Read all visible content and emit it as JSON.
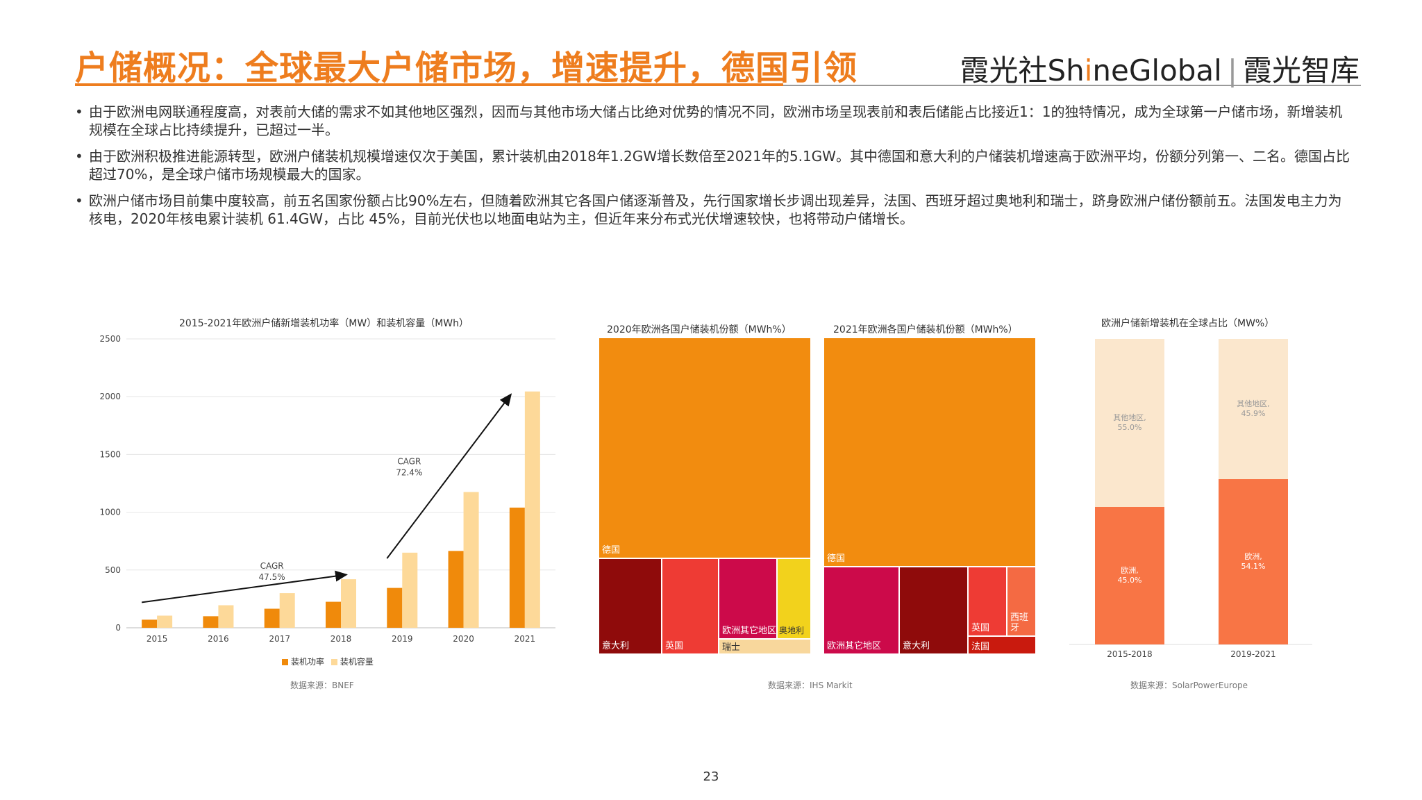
{
  "header": {
    "title": "户储概况：全球最大户储市场，增速提升，德国引领",
    "brand_main": "霞光社Sh",
    "brand_i": "i",
    "brand_tail": "neGlobal",
    "brand_sep": "|",
    "brand_right": "霞光智库"
  },
  "bullets": [
    "由于欧洲电网联通程度高，对表前大储的需求不如其他地区强烈，因而与其他市场大储占比绝对优势的情况不同，欧洲市场呈现表前和表后储能占比接近1：1的独特情况，成为全球第一户储市场，新增装机规模在全球占比持续提升，已超过一半。",
    "由于欧洲积极推进能源转型，欧洲户储装机规模增速仅次于美国，累计装机由2018年1.2GW增长数倍至2021年的5.1GW。其中德国和意大利的户储装机增速高于欧洲平均，份额分列第一、二名。德国占比超过70%，是全球户储市场规模最大的国家。",
    "欧洲户储市场目前集中度较高，前五名国家份额占比90%左右，但随着欧洲其它各国户储逐渐普及，先行国家增长步调出现差异，法国、西班牙超过奥地利和瑞士，跻身欧洲户储份额前五。法国发电主力为核电，2020年核电累计装机 61.4GW，占比 45%，目前光伏也以地面电站为主，但近年来分布式光伏增速较快，也将带动户储增长。"
  ],
  "chart_data": [
    {
      "type": "bar",
      "title": "2015-2021年欧洲户储新增装机功率（MW）和装机容量（MWh）",
      "categories": [
        "2015",
        "2016",
        "2017",
        "2018",
        "2019",
        "2020",
        "2021"
      ],
      "series": [
        {
          "name": "装机功率",
          "color": "#f08a0b",
          "values": [
            70,
            100,
            165,
            225,
            345,
            665,
            1040
          ]
        },
        {
          "name": "装机容量",
          "color": "#fdd999",
          "values": [
            105,
            195,
            300,
            420,
            650,
            1175,
            2045
          ]
        }
      ],
      "ylim": [
        0,
        2500
      ],
      "yticks": [
        0,
        500,
        1000,
        1500,
        2000,
        2500
      ],
      "annotations": [
        {
          "text1": "CAGR",
          "text2": "47.5%"
        },
        {
          "text1": "CAGR",
          "text2": "72.4%"
        }
      ],
      "source": "数据来源：BNEF"
    },
    {
      "type": "heatmap",
      "title": "2020年欧洲各国户储装机份额（MWh%）",
      "items": [
        {
          "label": "德国",
          "color": "#f28c0f"
        },
        {
          "label": "意大利",
          "color": "#8f0b0b"
        },
        {
          "label": "英国",
          "color": "#ee3b34"
        },
        {
          "label": "欧洲其它地区",
          "color": "#cc0a4a"
        },
        {
          "label": "奥地利",
          "color": "#f2d21c"
        },
        {
          "label": "瑞士",
          "color": "#f8d79c"
        }
      ]
    },
    {
      "type": "heatmap",
      "title": "2021年欧洲各国户储装机份额（MWh%）",
      "items": [
        {
          "label": "德国",
          "color": "#f28c0f"
        },
        {
          "label": "欧洲其它地区",
          "color": "#cc0a4a"
        },
        {
          "label": "意大利",
          "color": "#8f0b0b"
        },
        {
          "label": "英国",
          "color": "#ee3b34"
        },
        {
          "label": "西班牙",
          "color": "#f46a43"
        },
        {
          "label": "法国",
          "color": "#c91a0e"
        }
      ],
      "source": "数据来源：IHS Markit"
    },
    {
      "type": "bar",
      "title": "欧洲户储新增装机在全球占比（MW%）",
      "categories": [
        "2015-2018",
        "2019-2021"
      ],
      "series": [
        {
          "name": "欧洲",
          "color": "#f87545",
          "values": [
            45.0,
            54.1
          ],
          "labels": [
            "欧洲,",
            "欧洲,"
          ],
          "pct": [
            "45.0%",
            "54.1%"
          ]
        },
        {
          "name": "其他地区",
          "color": "#fbe7cd",
          "values": [
            55.0,
            45.9
          ],
          "labels": [
            "其他地区,",
            "其他地区,"
          ],
          "pct": [
            "55.0%",
            "45.9%"
          ]
        }
      ],
      "ylim": [
        0,
        100
      ],
      "source": "数据来源：SolarPowerEurope"
    }
  ],
  "page_number": "23"
}
